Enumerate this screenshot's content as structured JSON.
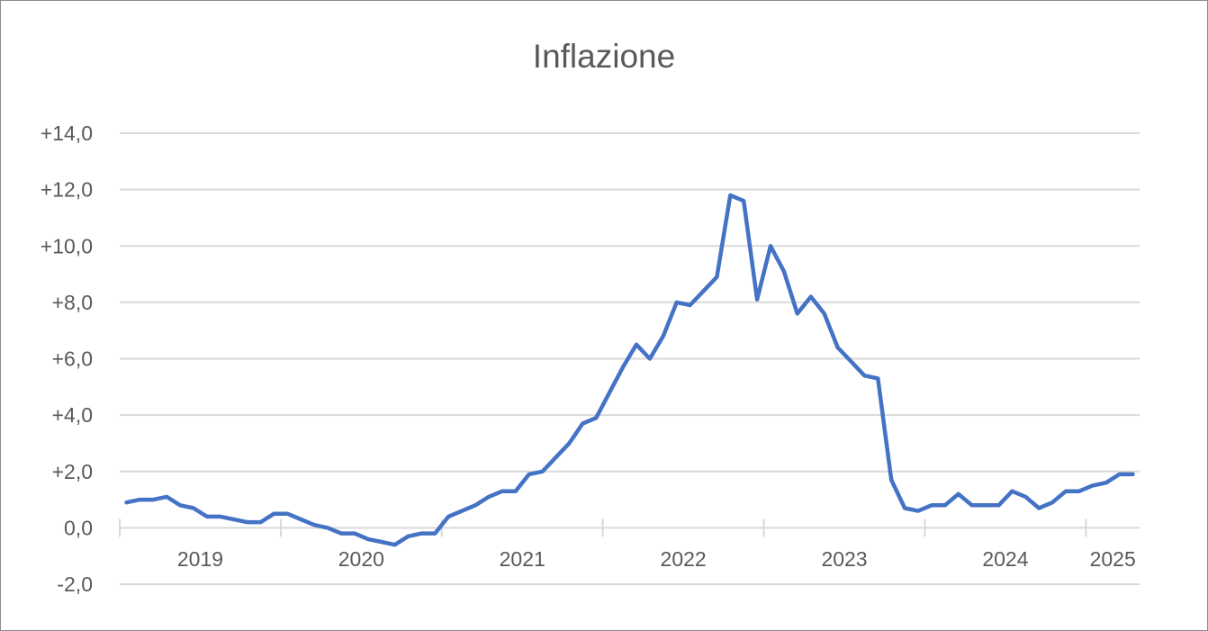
{
  "chart_data": {
    "type": "line",
    "title": "Inflazione",
    "xlabel": "",
    "ylabel": "",
    "ylim": [
      -2,
      14
    ],
    "y_ticks": [
      "+14,0",
      "+12,0",
      "+10,0",
      "+8,0",
      "+6,0",
      "+4,0",
      "+2,0",
      "0,0",
      "-2,0"
    ],
    "y_tick_values": [
      14,
      12,
      10,
      8,
      6,
      4,
      2,
      0,
      -2
    ],
    "x_tick_labels": [
      "2019",
      "2020",
      "2021",
      "2022",
      "2023",
      "2024",
      "2025"
    ],
    "grid": true,
    "legend": "none",
    "colors": {
      "line": "#4472c4",
      "grid": "#d9d9d9",
      "text": "#595959",
      "border": "#8c8c8c"
    },
    "series": [
      {
        "start": "2019-01",
        "frequency": "monthly",
        "values": [
          0.9,
          1.0,
          1.0,
          1.1,
          0.8,
          0.7,
          0.4,
          0.4,
          0.3,
          0.2,
          0.2,
          0.5,
          0.5,
          0.3,
          0.1,
          0.0,
          -0.2,
          -0.2,
          -0.4,
          -0.5,
          -0.6,
          -0.3,
          -0.2,
          -0.2,
          0.4,
          0.6,
          0.8,
          1.1,
          1.3,
          1.3,
          1.9,
          2.0,
          2.5,
          3.0,
          3.7,
          3.9,
          4.8,
          5.7,
          6.5,
          6.0,
          6.8,
          8.0,
          7.9,
          8.4,
          8.9,
          11.8,
          11.6,
          8.1,
          10.0,
          9.1,
          7.6,
          8.2,
          7.6,
          6.4,
          5.9,
          5.4,
          5.3,
          1.7,
          0.7,
          0.6,
          0.8,
          0.8,
          1.2,
          0.8,
          0.8,
          0.8,
          1.3,
          1.1,
          0.7,
          0.9,
          1.3,
          1.3,
          1.5,
          1.6,
          1.9,
          1.9
        ]
      }
    ]
  }
}
